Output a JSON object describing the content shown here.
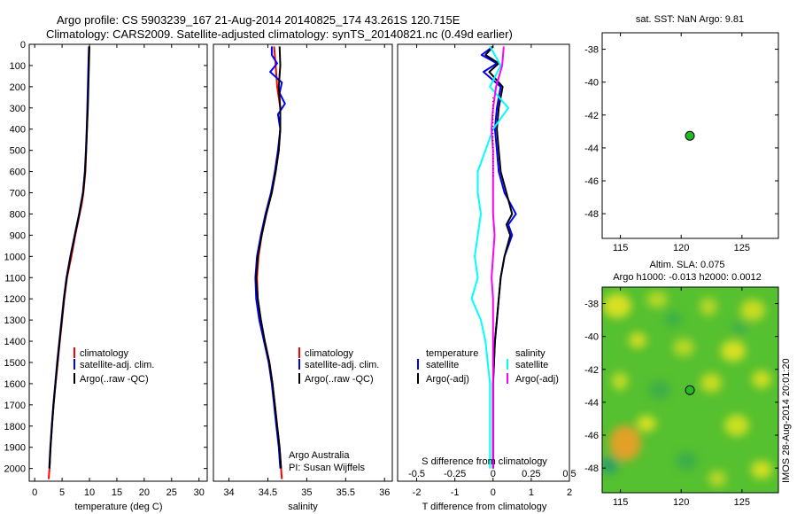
{
  "header": {
    "line1": "Argo profile: CS 5903239_167 21-Aug-2014 20140825_174 43.261S 120.715E",
    "line2": "Climatology: CARS2009. Satellite-adjusted climatology: synTS_20140821.nc (0.49d earlier)"
  },
  "colors": {
    "climatology": "#ff0000",
    "satellite": "#0000ff",
    "argo": "#000000",
    "sat_s": "#00ffff",
    "argo_s": "#ff00ff",
    "map_point": "#22bb22"
  },
  "chart_data": [
    {
      "type": "line",
      "name": "temperature-panel",
      "xlabel": "temperature (deg C)",
      "xlim": [
        -1,
        31.5
      ],
      "ylim": [
        2060,
        0
      ],
      "xticks": [
        "0",
        "5",
        "10",
        "15",
        "20",
        "25",
        "30"
      ],
      "yticks": [
        "0",
        "100",
        "200",
        "300",
        "400",
        "500",
        "600",
        "700",
        "800",
        "900",
        "1000",
        "1100",
        "1200",
        "1300",
        "1400",
        "1500",
        "1600",
        "1700",
        "1800",
        "1900",
        "2000"
      ],
      "legend": [
        "climatology",
        "satellite-adj. clim.",
        "Argo(..raw -QC)"
      ],
      "series": [
        {
          "name": "climatology",
          "color": "#ff0000",
          "pressure": [
            10,
            100,
            200,
            300,
            400,
            500,
            600,
            700,
            750,
            800,
            900,
            1000,
            1100,
            1200,
            1300,
            1400,
            1500,
            1600,
            1700,
            1800,
            1900,
            2000,
            2050
          ],
          "values": [
            9.95,
            9.85,
            9.75,
            9.65,
            9.55,
            9.4,
            9.25,
            8.9,
            8.6,
            8.2,
            7.4,
            6.7,
            5.9,
            5.4,
            5.0,
            4.6,
            4.2,
            3.8,
            3.45,
            3.15,
            2.9,
            2.7,
            2.55
          ]
        },
        {
          "name": "satellite-adj. clim.",
          "color": "#0000ff",
          "pressure": [
            10,
            100,
            200,
            300,
            400,
            500,
            600,
            700,
            750,
            800,
            900,
            1000,
            1100,
            1200,
            1300,
            1400,
            1500,
            1600,
            1700,
            1800,
            1900,
            2000
          ],
          "values": [
            9.9,
            9.8,
            9.7,
            9.6,
            9.5,
            9.35,
            9.15,
            8.8,
            8.45,
            8.1,
            7.3,
            6.5,
            5.8,
            5.3,
            4.9,
            4.5,
            4.1,
            3.75,
            3.4,
            3.1,
            2.85,
            2.65
          ]
        },
        {
          "name": "Argo(..raw -QC)",
          "color": "#000000",
          "pressure": [
            10,
            100,
            200,
            300,
            400,
            500,
            600,
            700,
            800,
            900,
            1000,
            1100,
            1200,
            1300,
            1400,
            1500,
            1600,
            1700,
            1800,
            1900,
            2000
          ],
          "values": [
            10.0,
            9.9,
            9.8,
            9.7,
            9.55,
            9.4,
            9.2,
            8.85,
            8.15,
            7.35,
            6.55,
            5.85,
            5.35,
            4.95,
            4.55,
            4.15,
            3.8,
            3.45,
            3.15,
            2.9,
            2.7
          ]
        }
      ]
    },
    {
      "type": "line",
      "name": "salinity-panel",
      "xlabel": "salinity",
      "xlim": [
        33.8,
        36.1
      ],
      "ylim": [
        2060,
        0
      ],
      "xticks": [
        "34",
        "34.5",
        "35",
        "35.5",
        "36"
      ],
      "legend": [
        "climatology",
        "satellite-adj. clim.",
        "Argo(..raw -QC)"
      ],
      "annotation": [
        "Argo Australia",
        "PI: Susan Wijffels"
      ],
      "series": [
        {
          "name": "climatology",
          "color": "#ff0000",
          "pressure": [
            10,
            100,
            200,
            300,
            400,
            500,
            600,
            700,
            800,
            900,
            1000,
            1100,
            1200,
            1300,
            1400,
            1500,
            1600,
            1700,
            1800,
            1900,
            2000,
            2050
          ],
          "values": [
            34.58,
            34.6,
            34.62,
            34.66,
            34.66,
            34.64,
            34.6,
            34.55,
            34.48,
            34.42,
            34.38,
            34.36,
            34.37,
            34.41,
            34.46,
            34.52,
            34.56,
            34.59,
            34.62,
            34.65,
            34.67,
            34.68
          ]
        },
        {
          "name": "satellite-adj. clim.",
          "color": "#0000ff",
          "pressure": [
            10,
            50,
            90,
            130,
            180,
            230,
            280,
            330,
            400,
            500,
            600,
            700,
            800,
            900,
            1000,
            1100,
            1200,
            1300,
            1400,
            1500,
            1600,
            1700,
            1800,
            1900,
            2000
          ],
          "values": [
            34.55,
            34.55,
            34.62,
            34.53,
            34.68,
            34.65,
            34.72,
            34.63,
            34.66,
            34.63,
            34.59,
            34.54,
            34.47,
            34.41,
            34.36,
            34.34,
            34.35,
            34.39,
            34.45,
            34.51,
            34.55,
            34.58,
            34.61,
            34.64,
            34.66
          ]
        },
        {
          "name": "Argo(..raw -QC)",
          "color": "#000000",
          "pressure": [
            10,
            100,
            200,
            300,
            400,
            500,
            600,
            700,
            800,
            900,
            1000,
            1100,
            1200,
            1300,
            1400,
            1500,
            1600,
            1700,
            1800,
            1900,
            2000
          ],
          "values": [
            34.65,
            34.66,
            34.64,
            34.66,
            34.66,
            34.64,
            34.6,
            34.55,
            34.48,
            34.42,
            34.37,
            34.35,
            34.37,
            34.41,
            34.46,
            34.52,
            34.56,
            34.59,
            34.62,
            34.65,
            34.67
          ]
        }
      ]
    },
    {
      "type": "line",
      "name": "difference-panel",
      "xlabel": "T difference from climatology",
      "xlabel2": "S difference from climatology",
      "xlim": [
        -2.5,
        2.0
      ],
      "ylim": [
        2060,
        0
      ],
      "xticks": [
        "-2",
        "-1",
        "0",
        "1",
        "2"
      ],
      "xticks2": [
        "-0.5",
        "-0.25",
        "0",
        "0.25",
        "0.5"
      ],
      "legend_titles": [
        "temperature",
        "salinity"
      ],
      "legend": [
        "satellite",
        "Argo(-adj)",
        "satellite",
        "Argo(-adj)"
      ],
      "series": [
        {
          "name": "T satellite",
          "color": "#0000ff",
          "pressure": [
            10,
            50,
            90,
            130,
            200,
            300,
            400,
            500,
            600,
            700,
            800,
            850,
            900,
            1000,
            1100,
            1200,
            1300,
            1400,
            1600,
            1800,
            2000
          ],
          "values": [
            0.0,
            -0.3,
            0.1,
            -0.25,
            0.2,
            0.1,
            0.05,
            0.1,
            0.15,
            0.3,
            0.6,
            0.4,
            0.5,
            0.3,
            0.2,
            0.15,
            0.1,
            0.05,
            0.0,
            0.0,
            0.0
          ]
        },
        {
          "name": "T Argo(-adj)",
          "color": "#000000",
          "pressure": [
            10,
            50,
            90,
            130,
            200,
            300,
            400,
            500,
            600,
            700,
            800,
            850,
            900,
            1000,
            1100,
            1200,
            1300,
            1400,
            1600,
            1800,
            2000
          ],
          "values": [
            0.0,
            -0.2,
            0.15,
            -0.1,
            0.25,
            0.15,
            0.1,
            0.15,
            0.2,
            0.35,
            0.5,
            0.35,
            0.45,
            0.3,
            0.2,
            0.15,
            0.1,
            0.05,
            0.0,
            0.0,
            0.0
          ]
        },
        {
          "name": "S satellite",
          "color": "#00ffff",
          "pressure": [
            10,
            100,
            200,
            300,
            400,
            500,
            600,
            700,
            800,
            900,
            1000,
            1100,
            1200,
            1300,
            1400,
            1600,
            1800,
            2000
          ],
          "values": [
            -0.02,
            0.05,
            -0.02,
            0.1,
            0.0,
            -0.05,
            -0.1,
            -0.1,
            -0.08,
            -0.1,
            -0.12,
            -0.1,
            -0.14,
            -0.08,
            -0.05,
            -0.02,
            -0.02,
            -0.02
          ]
        },
        {
          "name": "S Argo(-adj)",
          "color": "#ff00ff",
          "pressure": [
            10,
            100,
            200,
            300,
            400,
            500,
            600,
            700,
            800,
            900,
            1000,
            1100,
            1200,
            1300,
            1400,
            1600,
            1800,
            2000
          ],
          "values": [
            0.07,
            0.06,
            0.02,
            0.0,
            -0.01,
            0.0,
            0.0,
            0.0,
            0.0,
            0.01,
            0.0,
            -0.01,
            0.0,
            0.0,
            0.0,
            0.0,
            0.0,
            0.0
          ]
        }
      ]
    },
    {
      "type": "scatter",
      "name": "sst-map",
      "title": "sat. SST: NaN Argo: 9.81",
      "xlim": [
        113.5,
        128
      ],
      "ylim": [
        -49.5,
        -37
      ],
      "xticks": [
        "115",
        "120",
        "125"
      ],
      "yticks": [
        "-38",
        "-40",
        "-42",
        "-44",
        "-46",
        "-48"
      ],
      "points": [
        {
          "lon": 120.715,
          "lat": -43.261
        }
      ]
    },
    {
      "type": "heatmap",
      "name": "sla-map",
      "title1": "Altim. SLA: 0.075",
      "title2": "Argo h1000: -0.013 h2000: 0.0012",
      "side_label": "IMOS 28-Aug-2014 20:01:20",
      "xlim": [
        113.5,
        128
      ],
      "ylim": [
        -49.5,
        -37
      ],
      "xticks": [
        "115",
        "120",
        "125"
      ],
      "yticks": [
        "-38",
        "-40",
        "-42",
        "-44",
        "-46",
        "-48"
      ],
      "points": [
        {
          "lon": 120.715,
          "lat": -43.261
        }
      ]
    }
  ]
}
